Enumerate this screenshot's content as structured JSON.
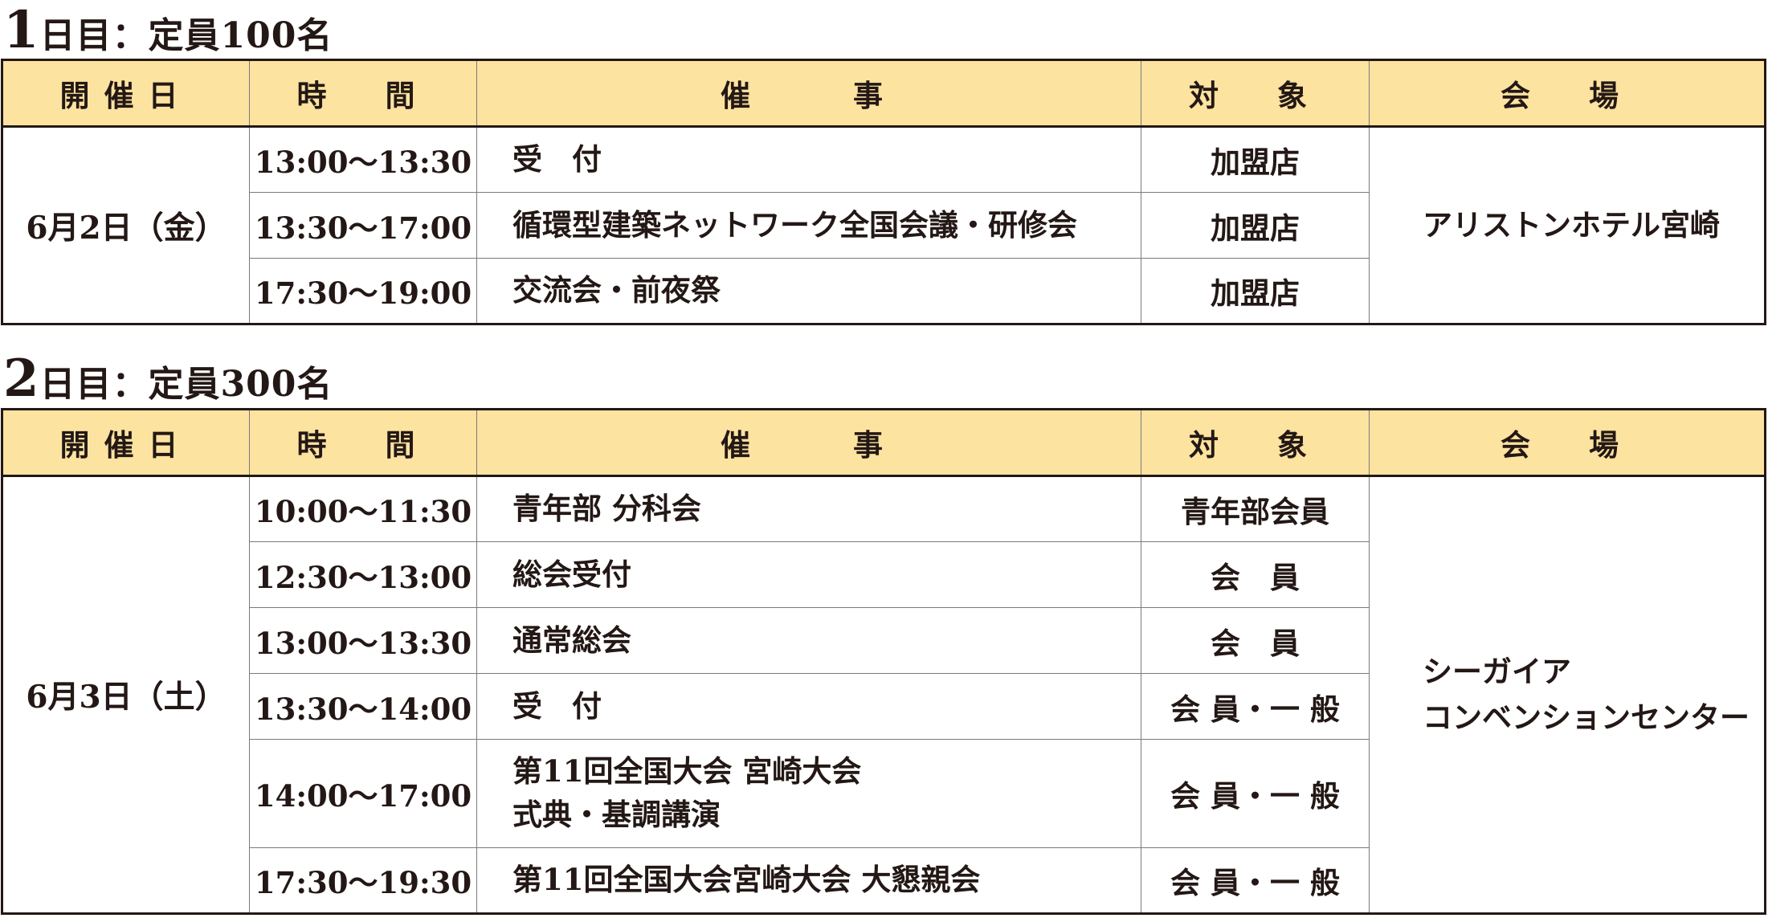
{
  "day1": {
    "title_num": "1",
    "title_rest": "日目：定員100名",
    "headers": [
      "開催日",
      "時　間",
      "催　　事",
      "対　象",
      "会　場"
    ],
    "date": "6月2日（金）",
    "venue": "アリストンホテル宮崎",
    "rows": [
      {
        "time": "13:00〜13:30",
        "event": "受　付",
        "target": "加盟店"
      },
      {
        "time": "13:30〜17:00",
        "event": "循環型建築ネットワーク全国会議・研修会",
        "target": "加盟店"
      },
      {
        "time": "17:30〜19:00",
        "event": "交流会・前夜祭",
        "target": "加盟店"
      }
    ]
  },
  "day2": {
    "title_num": "2",
    "title_rest": "日目：定員300名",
    "headers": [
      "開催日",
      "時　間",
      "催　　事",
      "対　象",
      "会　場"
    ],
    "date": "6月3日（土）",
    "venue_line1": "シーガイア",
    "venue_line2": "コンベンションセンター",
    "rows": [
      {
        "time": "10:00〜11:30",
        "event": "青年部 分科会",
        "target": "青年部会員"
      },
      {
        "time": "12:30〜13:00",
        "event": "総会受付",
        "target": "会　員"
      },
      {
        "time": "13:00〜13:30",
        "event": "通常総会",
        "target": "会　員"
      },
      {
        "time": "13:30〜14:00",
        "event": "受　付",
        "target": "会 員・一 般"
      },
      {
        "time": "14:00〜17:00",
        "event_line1": "第11回全国大会 宮崎大会",
        "event_line2": "式典・基調講演",
        "target": "会 員・一 般"
      },
      {
        "time": "17:30〜19:30",
        "event": "第11回全国大会宮崎大会 大懇親会",
        "target": "会 員・一 般"
      }
    ]
  },
  "colors": {
    "header_bg": "#fde3a0",
    "text": "#231815"
  }
}
